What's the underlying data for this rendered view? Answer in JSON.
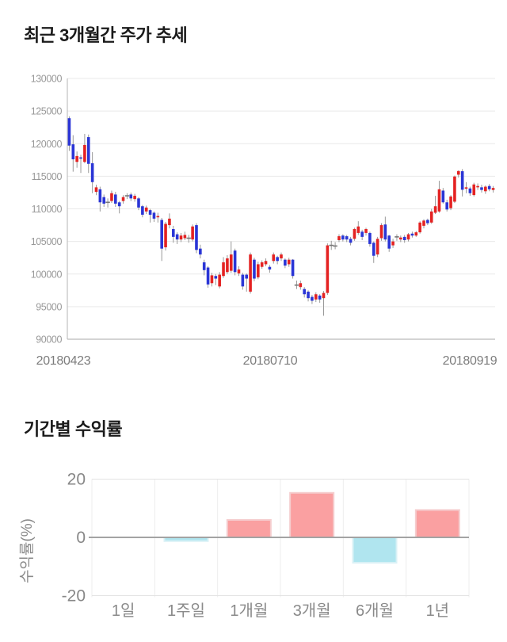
{
  "page": {
    "background": "#ffffff"
  },
  "chart_data": [
    {
      "type": "candlestick",
      "title": "최근 3개월간 주가 추세",
      "ylim": [
        90000,
        130000
      ],
      "y_ticks": [
        130000,
        125000,
        120000,
        115000,
        110000,
        105000,
        100000,
        95000,
        90000
      ],
      "x_tick_labels": [
        "20180423",
        "20180710",
        "20180919"
      ],
      "grid": true,
      "up_color": "#e42222",
      "down_color": "#2a35d6",
      "wick_color": "#999999",
      "doji_color": "#777777",
      "grid_color": "#e9e9e9",
      "axis_line_color": "#b6b6b6",
      "bottom_axis_color": "#aaaaaa",
      "tick_label_color": "#999999",
      "date_label_color": "#7d7d7d",
      "candles": [
        [
          123900,
          124200,
          118900,
          119700
        ],
        [
          119900,
          121300,
          115700,
          117600
        ],
        [
          117200,
          118800,
          116300,
          118100
        ],
        [
          117900,
          118300,
          115500,
          117700
        ],
        [
          117200,
          121500,
          117000,
          119800
        ],
        [
          121000,
          121400,
          115500,
          116900
        ],
        [
          117000,
          118700,
          112400,
          114100
        ],
        [
          112600,
          113700,
          112100,
          113300
        ],
        [
          113000,
          113400,
          109600,
          111000
        ],
        [
          111800,
          112200,
          110300,
          110800
        ],
        [
          111000,
          111600,
          110200,
          111000
        ],
        [
          111200,
          112800,
          110900,
          112400
        ],
        [
          112200,
          112600,
          110300,
          110800
        ],
        [
          111000,
          111200,
          109300,
          110400
        ],
        [
          111200,
          112100,
          110800,
          111800
        ],
        [
          112000,
          112400,
          111500,
          112000
        ],
        [
          112200,
          112500,
          111200,
          111600
        ],
        [
          111500,
          112300,
          111100,
          112000
        ],
        [
          111600,
          111800,
          109800,
          110200
        ],
        [
          110400,
          110600,
          108700,
          109100
        ],
        [
          109600,
          110500,
          109200,
          110200
        ],
        [
          109800,
          110000,
          107900,
          109100
        ],
        [
          109400,
          109600,
          108000,
          108500
        ],
        [
          108700,
          109400,
          107900,
          108900
        ],
        [
          108300,
          108600,
          102000,
          103900
        ],
        [
          104100,
          108000,
          103600,
          107700
        ],
        [
          107500,
          109300,
          107000,
          108500
        ],
        [
          106900,
          107400,
          104800,
          105700
        ],
        [
          106100,
          106400,
          104600,
          105300
        ],
        [
          105300,
          106300,
          104900,
          105900
        ],
        [
          105500,
          106500,
          105200,
          106000
        ],
        [
          105500,
          106000,
          104800,
          105500
        ],
        [
          105300,
          107600,
          105000,
          107300
        ],
        [
          107500,
          107800,
          103200,
          103700
        ],
        [
          103900,
          104500,
          102400,
          103000
        ],
        [
          101800,
          102200,
          99800,
          100600
        ],
        [
          101000,
          101200,
          97900,
          98400
        ],
        [
          98600,
          100200,
          98100,
          99800
        ],
        [
          99700,
          100000,
          98300,
          99300
        ],
        [
          98100,
          100300,
          97800,
          99900
        ],
        [
          99700,
          102600,
          99400,
          101800
        ],
        [
          100300,
          102900,
          100000,
          102400
        ],
        [
          100500,
          105000,
          100200,
          103000
        ],
        [
          103600,
          103900,
          99800,
          100300
        ],
        [
          100100,
          101200,
          99700,
          100700
        ],
        [
          99900,
          100200,
          97600,
          98100
        ],
        [
          99900,
          100100,
          97300,
          99300
        ],
        [
          97300,
          103300,
          97000,
          103000
        ],
        [
          102200,
          102500,
          98900,
          99300
        ],
        [
          99500,
          101900,
          99200,
          101500
        ],
        [
          101100,
          102100,
          100800,
          101800
        ],
        [
          101500,
          102400,
          101200,
          102000
        ],
        [
          101100,
          101400,
          100200,
          100700
        ],
        [
          102000,
          103300,
          101600,
          103000
        ],
        [
          102600,
          102800,
          101500,
          102000
        ],
        [
          102400,
          103300,
          102000,
          103000
        ],
        [
          102200,
          102400,
          100900,
          101300
        ],
        [
          101500,
          102500,
          101100,
          102200
        ],
        [
          102200,
          102300,
          99300,
          99700
        ],
        [
          98300,
          99000,
          97700,
          98300
        ],
        [
          98000,
          99000,
          97600,
          98600
        ],
        [
          97700,
          98000,
          96400,
          96900
        ],
        [
          97300,
          97500,
          95800,
          96300
        ],
        [
          96500,
          96800,
          95400,
          95900
        ],
        [
          96100,
          97200,
          95700,
          96900
        ],
        [
          96700,
          96900,
          95600,
          96100
        ],
        [
          96300,
          97400,
          93600,
          97100
        ],
        [
          97100,
          104700,
          96800,
          104400
        ],
        [
          104400,
          105100,
          103700,
          104400
        ],
        [
          104300,
          104900,
          103800,
          104300
        ],
        [
          105200,
          106100,
          104900,
          105800
        ],
        [
          105900,
          106100,
          105000,
          105300
        ],
        [
          105800,
          106000,
          104900,
          105300
        ],
        [
          105400,
          105700,
          104400,
          104800
        ],
        [
          105400,
          107100,
          105100,
          106900
        ],
        [
          106300,
          108100,
          106000,
          107300
        ],
        [
          106500,
          106800,
          105200,
          105700
        ],
        [
          106300,
          107100,
          105900,
          106900
        ],
        [
          106300,
          106500,
          104200,
          104600
        ],
        [
          104800,
          105000,
          101700,
          102800
        ],
        [
          103000,
          105700,
          102600,
          105400
        ],
        [
          105500,
          107800,
          105100,
          107500
        ],
        [
          107600,
          108800,
          105000,
          105300
        ],
        [
          105900,
          106000,
          103400,
          103900
        ],
        [
          104400,
          105400,
          104000,
          105000
        ],
        [
          105700,
          106100,
          105100,
          105700
        ],
        [
          105300,
          105900,
          104900,
          105600
        ],
        [
          105700,
          106000,
          104800,
          105200
        ],
        [
          105300,
          106300,
          105000,
          106100
        ],
        [
          106200,
          106500,
          105600,
          105900
        ],
        [
          105900,
          106600,
          105700,
          106400
        ],
        [
          106400,
          108100,
          106200,
          107900
        ],
        [
          107400,
          108400,
          107000,
          108200
        ],
        [
          108300,
          108500,
          107500,
          107800
        ],
        [
          107900,
          110000,
          107700,
          109600
        ],
        [
          109400,
          112000,
          109200,
          110400
        ],
        [
          109600,
          114300,
          109400,
          113000
        ],
        [
          112800,
          113200,
          110800,
          111000
        ],
        [
          111000,
          111400,
          109600,
          109900
        ],
        [
          110100,
          112100,
          109800,
          111900
        ],
        [
          111100,
          115100,
          110900,
          114960
        ],
        [
          115240,
          115900,
          114800,
          115800
        ],
        [
          115770,
          116100,
          111900,
          112930
        ],
        [
          113100,
          114100,
          112400,
          113300
        ],
        [
          113130,
          113400,
          112000,
          112400
        ],
        [
          112115,
          114000,
          111900,
          113740
        ],
        [
          113300,
          113900,
          112900,
          113500
        ],
        [
          113300,
          113700,
          112500,
          112900
        ],
        [
          112700,
          113600,
          112300,
          113400
        ],
        [
          113500,
          113800,
          112700,
          113000
        ],
        [
          112900,
          113500,
          112500,
          113200
        ]
      ]
    },
    {
      "type": "bar",
      "title": "기간별 수익률",
      "ylabel": "수익률(%)",
      "categories": [
        "1일",
        "1주일",
        "1개월",
        "3개월",
        "6개월",
        "1년"
      ],
      "values": [
        0,
        -1.3,
        6.0,
        15.3,
        -8.7,
        9.4
      ],
      "y_ticks": [
        20,
        0,
        -20
      ],
      "ylim": [
        -20,
        20
      ],
      "grid": true,
      "positive_color": "#faa0a1",
      "positive_border_color": "#f5cdce",
      "negative_color": "#b0e5ef",
      "negative_border_color": "#d9f1f6",
      "grid_color": "#ededed",
      "edge_line_color": "#e3e3e3",
      "zero_line_color": "#a3a3a3",
      "tick_label_color": "#888888",
      "category_label_color": "#8a8a8a",
      "ylabel_color": "#8a8a8a"
    }
  ]
}
